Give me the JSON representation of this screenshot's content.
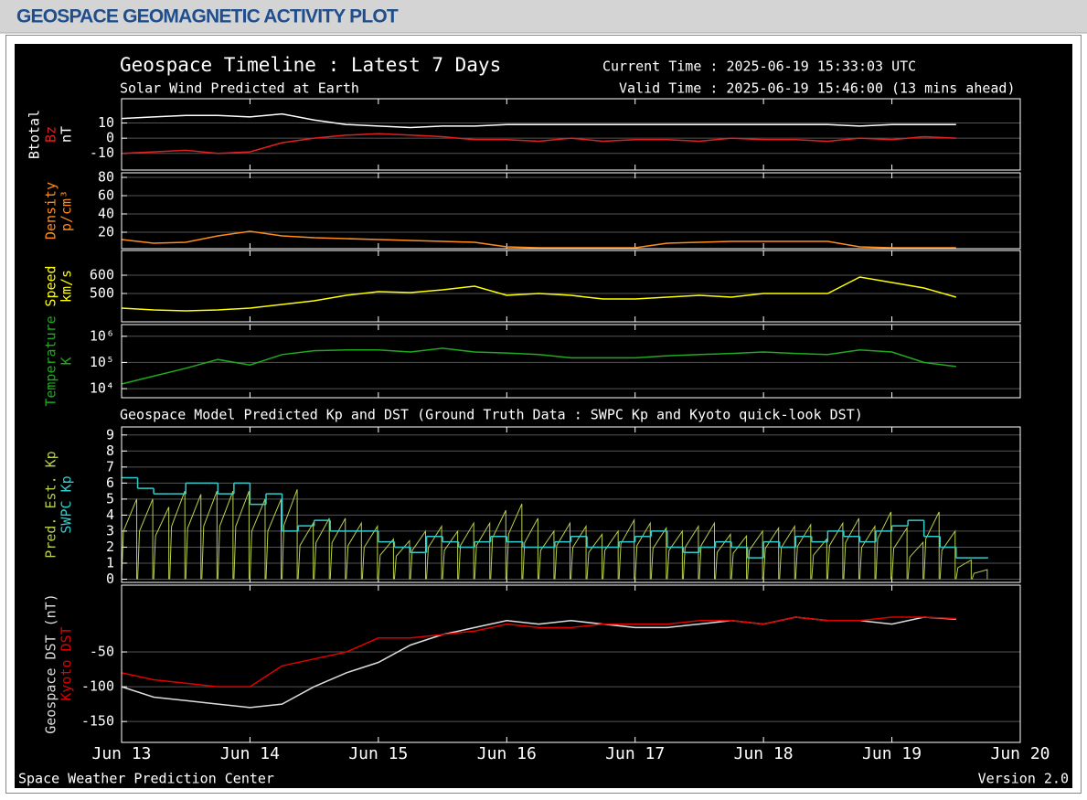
{
  "page": {
    "heading": "GEOSPACE GEOMAGNETIC ACTIVITY PLOT"
  },
  "plot": {
    "title": "Geospace Timeline : Latest 7 Days",
    "subtitle": "Solar Wind Predicted at Earth",
    "current_time": "Current Time : 2025-06-19 15:33:03 UTC",
    "valid_time": "Valid Time : 2025-06-19 15:46:00 (13 mins ahead)",
    "section_title": "Geospace Model Predicted Kp and DST (Ground Truth Data : SWPC Kp and Kyoto quick-look DST)",
    "footer_left": "Space Weather Prediction Center",
    "footer_right": "Version 2.0"
  },
  "chart_data": [
    {
      "type": "line",
      "ylabel": "nT",
      "ylabel_color": "#ffffff",
      "xlim": [
        0,
        168
      ],
      "ylim": [
        -21,
        26
      ],
      "yticks": [
        -10,
        0,
        10
      ],
      "grid": true,
      "x": [
        0,
        6,
        12,
        18,
        24,
        30,
        36,
        42,
        48,
        54,
        60,
        66,
        72,
        78,
        84,
        90,
        96,
        102,
        108,
        114,
        120,
        126,
        132,
        138,
        144,
        150,
        156
      ],
      "series": [
        {
          "name": "Btotal",
          "color": "#ffffff",
          "values": [
            13,
            14,
            15,
            15,
            14,
            16,
            12,
            9,
            8,
            7,
            8,
            8,
            9,
            9,
            9,
            9,
            9,
            9,
            9,
            9,
            9,
            9,
            9,
            8,
            9,
            9,
            9
          ]
        },
        {
          "name": "Bz",
          "color": "#e02020",
          "values": [
            -10,
            -9,
            -8,
            -10,
            -9,
            -3,
            0,
            2,
            3,
            2,
            1,
            -1,
            -1,
            -2,
            0,
            -2,
            -1,
            -1,
            -2,
            0,
            -1,
            -1,
            -2,
            0,
            -1,
            1,
            0
          ]
        }
      ]
    },
    {
      "type": "line",
      "ylabel": "p/cm³",
      "ylabel_color": "#ff8c1a",
      "xlim": [
        0,
        168
      ],
      "ylim": [
        2,
        85
      ],
      "yticks": [
        20,
        40,
        60,
        80
      ],
      "grid": true,
      "x": [
        0,
        6,
        12,
        18,
        24,
        30,
        36,
        42,
        48,
        54,
        60,
        66,
        72,
        78,
        84,
        90,
        96,
        102,
        108,
        114,
        120,
        126,
        132,
        138,
        144,
        150,
        156
      ],
      "series": [
        {
          "name": "Density",
          "color": "#ff8c1a",
          "values": [
            12,
            8,
            9,
            16,
            21,
            16,
            14,
            13,
            12,
            11,
            10,
            9,
            4,
            3,
            3,
            3,
            3,
            8,
            9,
            10,
            10,
            10,
            10,
            4,
            3,
            3,
            3
          ]
        }
      ]
    },
    {
      "type": "line",
      "ylabel": "km/s",
      "ylabel_color": "#ffff00",
      "xlim": [
        0,
        168
      ],
      "ylim": [
        345,
        735
      ],
      "yticks": [
        500,
        600
      ],
      "grid": true,
      "x": [
        0,
        6,
        12,
        18,
        24,
        30,
        36,
        42,
        48,
        54,
        60,
        66,
        72,
        78,
        84,
        90,
        96,
        102,
        108,
        114,
        120,
        126,
        132,
        138,
        144,
        150,
        156
      ],
      "series": [
        {
          "name": "Speed",
          "color": "#ffff00",
          "values": [
            420,
            410,
            405,
            410,
            420,
            440,
            460,
            490,
            510,
            505,
            520,
            540,
            490,
            500,
            490,
            470,
            470,
            480,
            490,
            480,
            500,
            500,
            500,
            590,
            560,
            530,
            480
          ]
        }
      ]
    },
    {
      "type": "line",
      "ylabel": "K",
      "ylabel_color": "#1faa1f",
      "ylog": true,
      "xlim": [
        0,
        168
      ],
      "ylim": [
        4500,
        2800000
      ],
      "grid": true,
      "yticks": [
        {
          "value": 10000,
          "label": "10⁴"
        },
        {
          "value": 100000,
          "label": "10⁵"
        },
        {
          "value": 1000000,
          "label": "10⁶"
        }
      ],
      "x": [
        0,
        6,
        12,
        18,
        24,
        30,
        36,
        42,
        48,
        54,
        60,
        66,
        72,
        78,
        84,
        90,
        96,
        102,
        108,
        114,
        120,
        126,
        132,
        138,
        144,
        150,
        156
      ],
      "series": [
        {
          "name": "Temperature",
          "color": "#1faa1f",
          "values": [
            15000,
            30000,
            60000,
            130000,
            80000,
            200000,
            280000,
            300000,
            300000,
            250000,
            350000,
            250000,
            230000,
            200000,
            150000,
            150000,
            150000,
            180000,
            200000,
            220000,
            250000,
            220000,
            200000,
            300000,
            250000,
            100000,
            70000
          ]
        }
      ]
    },
    {
      "type": "line",
      "xlim": [
        0,
        168
      ],
      "ylim": [
        -0.2,
        9.5
      ],
      "yticks": [
        0,
        1,
        2,
        3,
        4,
        5,
        6,
        7,
        8,
        9
      ],
      "grid": true,
      "x": [
        0,
        3,
        6,
        9,
        12,
        15,
        18,
        21,
        24,
        27,
        30,
        33,
        36,
        39,
        42,
        45,
        48,
        51,
        54,
        57,
        60,
        63,
        66,
        69,
        72,
        75,
        78,
        81,
        84,
        87,
        90,
        93,
        96,
        99,
        102,
        105,
        108,
        111,
        114,
        117,
        120,
        123,
        126,
        129,
        132,
        135,
        138,
        141,
        144,
        147,
        150,
        153,
        156,
        159
      ],
      "series": [
        {
          "name": "Pred. Est. Kp",
          "color": "#b8d048",
          "style": "sawtooth",
          "values": [
            5,
            5,
            4.5,
            5.5,
            5.3,
            5.5,
            5.5,
            5.5,
            5,
            5,
            5.6,
            3.5,
            3.8,
            3.8,
            3.5,
            3.3,
            2.5,
            2.4,
            3,
            3.3,
            3,
            3.5,
            3.5,
            4.3,
            4.7,
            3.8,
            3,
            3.5,
            3.3,
            2.8,
            3,
            3.7,
            3.5,
            3.2,
            3,
            3.3,
            3.5,
            2.8,
            2.7,
            3,
            3.2,
            3.3,
            3.4,
            2.5,
            3.5,
            3.8,
            3.3,
            4.2,
            3.2,
            2.3,
            4.2,
            3,
            1.2,
            0.6
          ]
        },
        {
          "name": "SWPC Kp",
          "color": "#33cccc",
          "style": "step",
          "values": [
            6.33,
            5.67,
            5.33,
            5.33,
            6,
            6,
            5.33,
            6,
            4.67,
            5.33,
            3,
            3.33,
            3.67,
            3,
            3,
            3,
            2.33,
            2,
            1.67,
            2.67,
            2.33,
            2,
            2.33,
            2.67,
            2.33,
            2,
            2,
            2.33,
            2.67,
            2,
            2,
            2.33,
            2.67,
            3,
            2,
            1.67,
            2,
            2.33,
            2,
            1.33,
            2.33,
            2,
            2.67,
            2.33,
            3,
            2.67,
            2.33,
            3,
            3.33,
            3.67,
            2.67,
            2,
            1.33,
            1.33
          ]
        }
      ]
    },
    {
      "type": "line",
      "xlim": [
        0,
        168
      ],
      "ylim": [
        -180,
        46
      ],
      "yticks": [
        -150,
        -100,
        -50
      ],
      "grid": true,
      "xticks": [
        {
          "value": 0,
          "label": "Jun 13"
        },
        {
          "value": 24,
          "label": "Jun 14"
        },
        {
          "value": 48,
          "label": "Jun 15"
        },
        {
          "value": 72,
          "label": "Jun 16"
        },
        {
          "value": 96,
          "label": "Jun 17"
        },
        {
          "value": 120,
          "label": "Jun 18"
        },
        {
          "value": 144,
          "label": "Jun 19"
        },
        {
          "value": 168,
          "label": "Jun 20"
        }
      ],
      "x": [
        0,
        6,
        12,
        18,
        24,
        30,
        36,
        42,
        48,
        54,
        60,
        66,
        72,
        78,
        84,
        90,
        96,
        102,
        108,
        114,
        120,
        126,
        132,
        138,
        144,
        150,
        156
      ],
      "series": [
        {
          "name": "Geospace DST (nT)",
          "color": "#dddddd",
          "values": [
            -100,
            -115,
            -120,
            -125,
            -130,
            -125,
            -100,
            -80,
            -65,
            -40,
            -25,
            -15,
            -5,
            -10,
            -5,
            -10,
            -15,
            -15,
            -10,
            -5,
            -10,
            0,
            -5,
            -5,
            -10,
            0,
            -3
          ]
        },
        {
          "name": "Kyoto DST",
          "color": "#e00000",
          "values": [
            -80,
            -90,
            -95,
            -100,
            -100,
            -70,
            -60,
            -50,
            -30,
            -30,
            -25,
            -20,
            -10,
            -15,
            -15,
            -10,
            -10,
            -10,
            -5,
            -5,
            -10,
            0,
            -5,
            -5,
            0,
            0,
            -2
          ]
        }
      ]
    }
  ]
}
